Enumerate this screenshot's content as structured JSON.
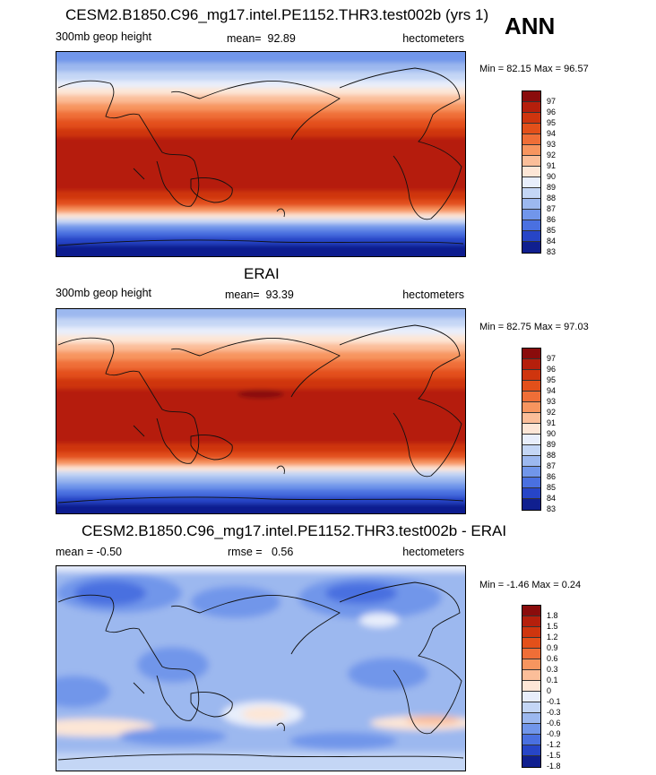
{
  "season": "ANN",
  "panels": [
    {
      "title": "CESM2.B1850.C96_mg17.intel.PE1152.THR3.test002b (yrs 1)",
      "left": "300mb geop height",
      "center_label": "mean=",
      "center_value": "92.89",
      "units": "hectometers",
      "minmax": "Min =  82.15 Max =  96.57",
      "levels": [
        "97",
        "96",
        "95",
        "94",
        "93",
        "92",
        "91",
        "90",
        "89",
        "88",
        "87",
        "86",
        "85",
        "84",
        "83"
      ]
    },
    {
      "title": "ERAI",
      "left": "300mb geop height",
      "center_label": "mean=",
      "center_value": "93.39",
      "units": "hectometers",
      "minmax": "Min =  82.75 Max =  97.03",
      "levels": [
        "97",
        "96",
        "95",
        "94",
        "93",
        "92",
        "91",
        "90",
        "89",
        "88",
        "87",
        "86",
        "85",
        "84",
        "83"
      ]
    },
    {
      "title": "CESM2.B1850.C96_mg17.intel.PE1152.THR3.test002b - ERAI",
      "left": "mean =  -0.50",
      "center_label": "rmse =",
      "center_value": "0.56",
      "units": "hectometers",
      "minmax": "Min =  -1.46 Max =   0.24",
      "levels": [
        "1.8",
        "1.5",
        "1.2",
        "0.9",
        "0.6",
        "0.3",
        "0.1",
        "0",
        "-0.1",
        "-0.3",
        "-0.6",
        "-0.9",
        "-1.2",
        "-1.5",
        "-1.8"
      ]
    }
  ],
  "palette": {
    "abs": [
      "#8a0c0c",
      "#b51f0c",
      "#cf350e",
      "#e3501a",
      "#ef6e37",
      "#f7955f",
      "#fbbe99",
      "#fde6d6",
      "#e8eefb",
      "#c4d6f5",
      "#9cb8ef",
      "#7196ea",
      "#4a70e0",
      "#2745c7",
      "#101f8f"
    ],
    "diff": [
      "#8a0c0c",
      "#b51f0c",
      "#cf350e",
      "#e3501a",
      "#ef6e37",
      "#f7955f",
      "#fbbe99",
      "#fde6d6",
      "#e8eefb",
      "#c4d6f5",
      "#9cb8ef",
      "#7196ea",
      "#4a70e0",
      "#2745c7",
      "#101f8f"
    ]
  }
}
